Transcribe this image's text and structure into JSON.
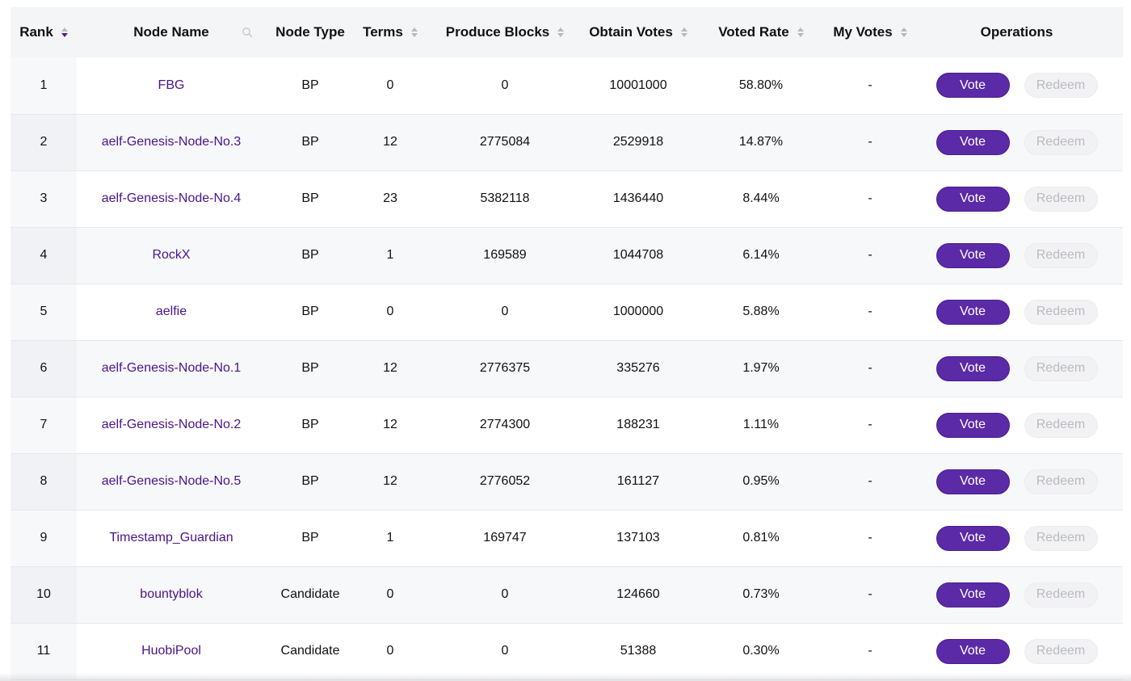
{
  "table": {
    "columns": {
      "rank": "Rank",
      "node_name": "Node Name",
      "node_type": "Node Type",
      "terms": "Terms",
      "produce_blocks": "Produce Blocks",
      "obtain_votes": "Obtain Votes",
      "voted_rate": "Voted Rate",
      "my_votes": "My Votes",
      "operations": "Operations"
    },
    "vote_label": "Vote",
    "redeem_label": "Redeem",
    "rows": [
      {
        "rank": "1",
        "name": "FBG",
        "type": "BP",
        "terms": "0",
        "blocks": "0",
        "votes": "10001000",
        "rate": "58.80%",
        "my_votes": "-"
      },
      {
        "rank": "2",
        "name": "aelf-Genesis-Node-No.3",
        "type": "BP",
        "terms": "12",
        "blocks": "2775084",
        "votes": "2529918",
        "rate": "14.87%",
        "my_votes": "-"
      },
      {
        "rank": "3",
        "name": "aelf-Genesis-Node-No.4",
        "type": "BP",
        "terms": "23",
        "blocks": "5382118",
        "votes": "1436440",
        "rate": "8.44%",
        "my_votes": "-"
      },
      {
        "rank": "4",
        "name": "RockX",
        "type": "BP",
        "terms": "1",
        "blocks": "169589",
        "votes": "1044708",
        "rate": "6.14%",
        "my_votes": "-"
      },
      {
        "rank": "5",
        "name": "aelfie",
        "type": "BP",
        "terms": "0",
        "blocks": "0",
        "votes": "1000000",
        "rate": "5.88%",
        "my_votes": "-"
      },
      {
        "rank": "6",
        "name": "aelf-Genesis-Node-No.1",
        "type": "BP",
        "terms": "12",
        "blocks": "2776375",
        "votes": "335276",
        "rate": "1.97%",
        "my_votes": "-"
      },
      {
        "rank": "7",
        "name": "aelf-Genesis-Node-No.2",
        "type": "BP",
        "terms": "12",
        "blocks": "2774300",
        "votes": "188231",
        "rate": "1.11%",
        "my_votes": "-"
      },
      {
        "rank": "8",
        "name": "aelf-Genesis-Node-No.5",
        "type": "BP",
        "terms": "12",
        "blocks": "2776052",
        "votes": "161127",
        "rate": "0.95%",
        "my_votes": "-"
      },
      {
        "rank": "9",
        "name": "Timestamp_Guardian",
        "type": "BP",
        "terms": "1",
        "blocks": "169747",
        "votes": "137103",
        "rate": "0.81%",
        "my_votes": "-"
      },
      {
        "rank": "10",
        "name": "bountyblok",
        "type": "Candidate",
        "terms": "0",
        "blocks": "0",
        "votes": "124660",
        "rate": "0.73%",
        "my_votes": "-"
      },
      {
        "rank": "11",
        "name": "HuobiPool",
        "type": "Candidate",
        "terms": "0",
        "blocks": "0",
        "votes": "51388",
        "rate": "0.30%",
        "my_votes": "-"
      }
    ]
  },
  "colors": {
    "accent": "#5b2aa6",
    "link": "#4a148c",
    "header_bg": "#f4f5f7",
    "disabled_text": "#b9bbc0"
  }
}
